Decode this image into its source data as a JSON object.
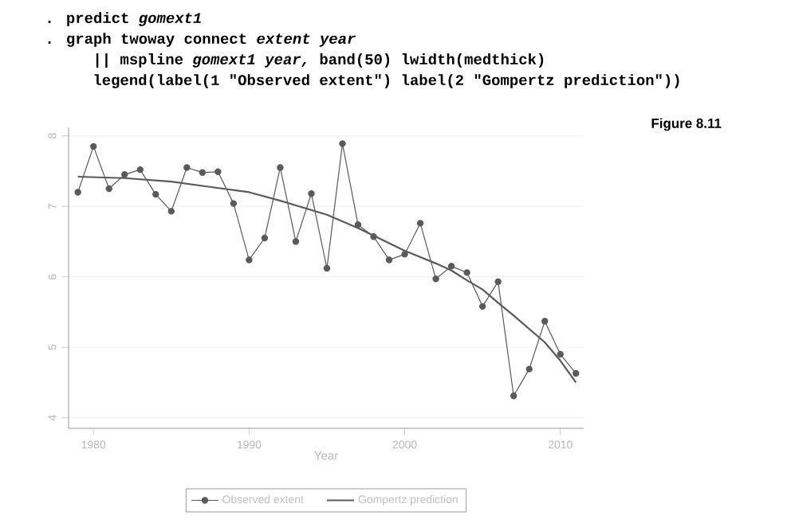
{
  "chart_data": {
    "type": "line",
    "xlabel": "Year",
    "annotations": [
      ". predict *gomext1*",
      ". graph twoway connect *extent year*",
      "|| mspline *gomext1 year,* band(50) lwidth(medthick)",
      "legend(label(1 \"Observed extent\") label(2 \"Gompertz prediction\"))",
      "Figure 8.11"
    ],
    "xlim": [
      1978.4,
      2011.5
    ],
    "ylim": [
      3.85,
      8.12
    ],
    "xticks": [
      1980,
      1990,
      2000,
      2010
    ],
    "yticks": [
      4,
      5,
      6,
      7,
      8
    ],
    "grid": "y",
    "legend": "bottom",
    "series": [
      {
        "name": "Observed extent",
        "color": "#5a5a5a",
        "marker": "circle",
        "x": [
          1979,
          1980,
          1981,
          1982,
          1983,
          1984,
          1985,
          1986,
          1987,
          1988,
          1989,
          1990,
          1991,
          1992,
          1993,
          1994,
          1995,
          1996,
          1997,
          1998,
          1999,
          2000,
          2001,
          2002,
          2003,
          2004,
          2005,
          2006,
          2007,
          2008,
          2009,
          2010,
          2011
        ],
        "values": [
          7.2,
          7.85,
          7.25,
          7.45,
          7.52,
          7.17,
          6.93,
          7.55,
          7.48,
          7.49,
          7.04,
          6.24,
          6.55,
          7.55,
          6.5,
          7.18,
          6.12,
          7.89,
          6.74,
          6.57,
          6.24,
          6.32,
          6.76,
          5.97,
          6.15,
          6.06,
          5.58,
          5.93,
          4.31,
          4.69,
          5.37,
          4.9,
          4.63
        ]
      },
      {
        "name": "Gompertz prediction",
        "color": "#5a5a5a",
        "marker": "none",
        "x": [
          1979,
          1982,
          1985,
          1987,
          1990,
          1992,
          1995,
          1997,
          2000,
          2002,
          2003,
          2004,
          2005,
          2006,
          2007,
          2008,
          2009,
          2010,
          2011
        ],
        "values": [
          7.42,
          7.4,
          7.35,
          7.29,
          7.2,
          7.08,
          6.88,
          6.69,
          6.37,
          6.19,
          6.09,
          5.95,
          5.82,
          5.63,
          5.45,
          5.26,
          5.07,
          4.81,
          4.5
        ]
      }
    ]
  }
}
